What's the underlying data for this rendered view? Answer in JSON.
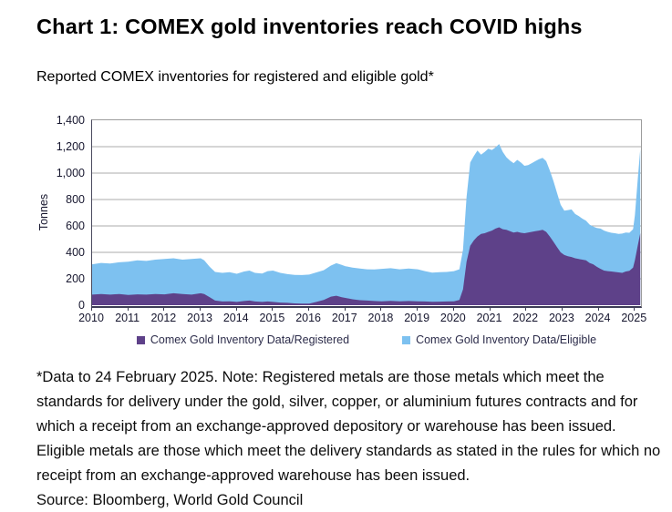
{
  "header": {
    "title": "Chart 1: COMEX gold inventories reach COVID highs",
    "subtitle": "Reported COMEX inventories for registered and eligible gold*"
  },
  "footnote": "*Data to 24 February 2025. Note: Registered metals are those metals which meet the standards for delivery under the gold, silver, copper, or aluminium futures contracts and for which a receipt from an exchange-approved depository or warehouse has been issued. Eligible metals are those which meet the delivery standards as stated in the rules for which no receipt from an exchange-approved warehouse has been issued.",
  "source": "Source: Bloomberg, World Gold Council",
  "colors": {
    "registered": "#5E4189",
    "eligible": "#7DC1F0",
    "grid": "#ababab",
    "axis_dark": "#3d3d55",
    "border_gray": "#9c9c9c",
    "text": "#16162e"
  },
  "chart_data": {
    "type": "area",
    "stacked": true,
    "ylabel": "Tonnes",
    "xlabel": "",
    "ylim": [
      0,
      1400
    ],
    "yticks": [
      0,
      200,
      400,
      600,
      800,
      1000,
      1200,
      1400
    ],
    "xlim": [
      2010,
      2025.17
    ],
    "xticks": [
      2010,
      2011,
      2012,
      2013,
      2014,
      2015,
      2016,
      2017,
      2018,
      2019,
      2020,
      2021,
      2022,
      2023,
      2024,
      2025
    ],
    "grid": "horizontal",
    "legend_position": "bottom",
    "x": [
      2010.0,
      2010.25,
      2010.5,
      2010.75,
      2011.0,
      2011.25,
      2011.5,
      2011.75,
      2012.0,
      2012.25,
      2012.5,
      2012.75,
      2013.0,
      2013.1,
      2013.25,
      2013.4,
      2013.6,
      2013.8,
      2014.0,
      2014.2,
      2014.35,
      2014.5,
      2014.7,
      2014.85,
      2015.0,
      2015.2,
      2015.4,
      2015.6,
      2015.8,
      2016.0,
      2016.2,
      2016.4,
      2016.6,
      2016.75,
      2016.9,
      2017.0,
      2017.2,
      2017.4,
      2017.6,
      2017.8,
      2018.0,
      2018.25,
      2018.5,
      2018.75,
      2019.0,
      2019.2,
      2019.4,
      2019.6,
      2019.8,
      2020.0,
      2020.15,
      2020.25,
      2020.35,
      2020.45,
      2020.55,
      2020.65,
      2020.75,
      2020.85,
      2020.95,
      2021.05,
      2021.15,
      2021.25,
      2021.35,
      2021.45,
      2021.55,
      2021.65,
      2021.75,
      2021.85,
      2021.95,
      2022.05,
      2022.15,
      2022.25,
      2022.35,
      2022.45,
      2022.55,
      2022.65,
      2022.75,
      2022.85,
      2022.95,
      2023.05,
      2023.15,
      2023.25,
      2023.35,
      2023.45,
      2023.55,
      2023.65,
      2023.75,
      2023.85,
      2023.95,
      2024.05,
      2024.15,
      2024.25,
      2024.35,
      2024.45,
      2024.55,
      2024.65,
      2024.75,
      2024.85,
      2024.95,
      2025.0,
      2025.08,
      2025.15
    ],
    "series": [
      {
        "name": "Comex Gold Inventory Data/Registered",
        "color": "#5E4189",
        "values": [
          80,
          85,
          80,
          85,
          78,
          82,
          80,
          85,
          82,
          90,
          85,
          80,
          90,
          85,
          60,
          35,
          28,
          30,
          25,
          32,
          35,
          28,
          25,
          28,
          25,
          20,
          18,
          14,
          12,
          12,
          25,
          40,
          65,
          72,
          60,
          55,
          45,
          38,
          35,
          32,
          30,
          33,
          30,
          32,
          30,
          28,
          26,
          27,
          28,
          30,
          40,
          120,
          330,
          450,
          490,
          520,
          540,
          545,
          555,
          565,
          580,
          590,
          575,
          570,
          560,
          550,
          555,
          548,
          545,
          550,
          555,
          560,
          565,
          570,
          555,
          520,
          480,
          440,
          400,
          380,
          370,
          365,
          355,
          350,
          345,
          340,
          320,
          310,
          290,
          275,
          262,
          258,
          255,
          252,
          248,
          245,
          255,
          260,
          285,
          340,
          450,
          545
        ]
      },
      {
        "name": "Comex Gold Inventory Data/Eligible",
        "color": "#7DC1F0",
        "values": [
          230,
          235,
          235,
          240,
          252,
          258,
          255,
          260,
          268,
          265,
          260,
          270,
          265,
          255,
          230,
          217,
          217,
          220,
          213,
          223,
          227,
          217,
          215,
          230,
          237,
          225,
          217,
          216,
          216,
          220,
          223,
          225,
          235,
          246,
          245,
          240,
          240,
          240,
          237,
          238,
          245,
          247,
          242,
          246,
          242,
          230,
          220,
          223,
          224,
          228,
          232,
          300,
          490,
          630,
          640,
          650,
          600,
          615,
          630,
          610,
          615,
          630,
          585,
          550,
          535,
          525,
          545,
          532,
          510,
          510,
          520,
          530,
          540,
          545,
          535,
          500,
          460,
          410,
          360,
          335,
          350,
          360,
          335,
          325,
          310,
          300,
          290,
          285,
          295,
          305,
          303,
          297,
          293,
          293,
          292,
          297,
          295,
          288,
          290,
          340,
          500,
          635
        ]
      }
    ]
  }
}
